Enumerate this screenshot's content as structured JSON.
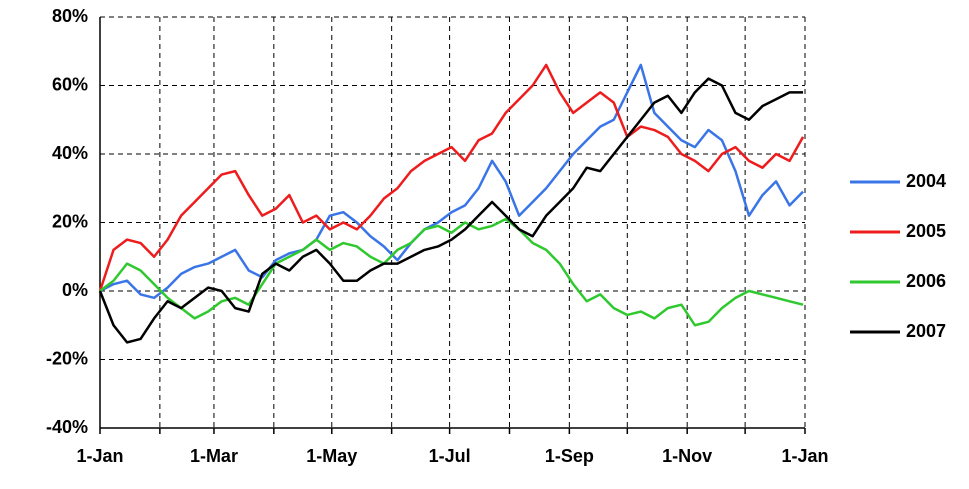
{
  "chart_data": {
    "type": "line",
    "x": [
      0,
      7,
      14,
      21,
      28,
      35,
      42,
      49,
      56,
      63,
      70,
      77,
      84,
      91,
      98,
      105,
      112,
      119,
      126,
      133,
      140,
      147,
      154,
      161,
      168,
      175,
      182,
      189,
      196,
      203,
      210,
      217,
      224,
      231,
      238,
      245,
      252,
      259,
      266,
      273,
      280,
      287,
      294,
      301,
      308,
      315,
      322,
      329,
      336,
      343,
      350,
      357,
      364
    ],
    "series": [
      {
        "name": "2004",
        "color": "#3a75e8",
        "values": [
          0,
          2,
          3,
          -1,
          -2,
          1,
          5,
          7,
          8,
          10,
          12,
          6,
          4,
          9,
          11,
          12,
          15,
          22,
          23,
          20,
          16,
          13,
          9,
          14,
          18,
          20,
          23,
          25,
          30,
          38,
          32,
          22,
          26,
          30,
          35,
          40,
          44,
          48,
          50,
          58,
          66,
          52,
          48,
          44,
          42,
          47,
          44,
          35,
          22,
          28,
          32,
          25,
          29
        ]
      },
      {
        "name": "2005",
        "color": "#ee1c1c",
        "values": [
          0,
          12,
          15,
          14,
          10,
          15,
          22,
          26,
          30,
          34,
          35,
          28,
          22,
          24,
          28,
          20,
          22,
          18,
          20,
          18,
          22,
          27,
          30,
          35,
          38,
          40,
          42,
          38,
          44,
          46,
          52,
          56,
          60,
          66,
          58,
          52,
          55,
          58,
          55,
          45,
          48,
          47,
          45,
          40,
          38,
          35,
          40,
          42,
          38,
          36,
          40,
          38,
          45
        ]
      },
      {
        "name": "2006",
        "color": "#2fc92f",
        "values": [
          0,
          3,
          8,
          6,
          2,
          -2,
          -5,
          -8,
          -6,
          -3,
          -2,
          -4,
          2,
          8,
          10,
          12,
          15,
          12,
          14,
          13,
          10,
          8,
          12,
          14,
          18,
          19,
          17,
          20,
          18,
          19,
          21,
          18,
          14,
          12,
          8,
          2,
          -3,
          -1,
          -5,
          -7,
          -6,
          -8,
          -5,
          -4,
          -10,
          -9,
          -5,
          -2,
          0,
          -1,
          -2,
          -3,
          -4
        ]
      },
      {
        "name": "2007",
        "color": "#000000",
        "values": [
          0,
          -10,
          -15,
          -14,
          -8,
          -3,
          -5,
          -2,
          1,
          0,
          -5,
          -6,
          5,
          8,
          6,
          10,
          12,
          8,
          3,
          3,
          6,
          8,
          8,
          10,
          12,
          13,
          15,
          18,
          22,
          26,
          22,
          18,
          16,
          22,
          26,
          30,
          36,
          35,
          40,
          45,
          50,
          55,
          57,
          52,
          58,
          62,
          60,
          52,
          50,
          54,
          56,
          58,
          58
        ]
      }
    ],
    "xlim": [
      0,
      365
    ],
    "xticks": [
      {
        "value": 0,
        "label": "1-Jan"
      },
      {
        "value": 31,
        "label": null
      },
      {
        "value": 59,
        "label": "1-Mar"
      },
      {
        "value": 90,
        "label": null
      },
      {
        "value": 120,
        "label": "1-May"
      },
      {
        "value": 151,
        "label": null
      },
      {
        "value": 181,
        "label": "1-Jul"
      },
      {
        "value": 212,
        "label": null
      },
      {
        "value": 243,
        "label": "1-Sep"
      },
      {
        "value": 273,
        "label": null
      },
      {
        "value": 304,
        "label": "1-Nov"
      },
      {
        "value": 334,
        "label": null
      },
      {
        "value": 365,
        "label": "1-Jan"
      }
    ],
    "ylim": [
      -40,
      80
    ],
    "yticks": [
      {
        "value": -40,
        "label": "-40%"
      },
      {
        "value": -20,
        "label": "-20%"
      },
      {
        "value": 0,
        "label": "0%"
      },
      {
        "value": 20,
        "label": "20%"
      },
      {
        "value": 40,
        "label": "40%"
      },
      {
        "value": 60,
        "label": "60%"
      },
      {
        "value": 80,
        "label": "80%"
      }
    ],
    "grid": true,
    "legend": "right"
  }
}
